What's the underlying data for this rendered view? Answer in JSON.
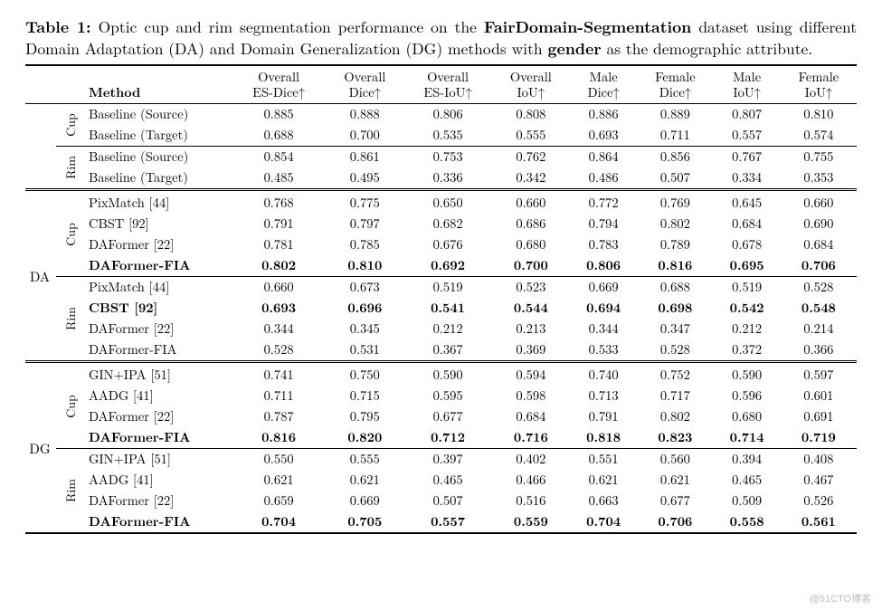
{
  "caption": {
    "label": "Table 1:",
    "before_ds": " Optic cup and rim segmentation performance on the ",
    "dataset": "FairDomain-Segmentation",
    "mid": " dataset using different Domain Adaptation (DA) and Domain Generalization (DG) methods with ",
    "attr": "gender",
    "after_attr": " as the demographic attribute."
  },
  "columns": [
    {
      "l1": "",
      "l2": "Method"
    },
    {
      "l1": "Overall",
      "l2": "ES-Dice↑"
    },
    {
      "l1": "Overall",
      "l2": "Dice↑"
    },
    {
      "l1": "Overall",
      "l2": "ES-IoU↑"
    },
    {
      "l1": "Overall",
      "l2": "IoU↑"
    },
    {
      "l1": "Male",
      "l2": "Dice↑"
    },
    {
      "l1": "Female",
      "l2": "Dice↑"
    },
    {
      "l1": "Male",
      "l2": "IoU↑"
    },
    {
      "l1": "Female",
      "l2": "IoU↑"
    }
  ],
  "section1": {
    "cup_label": "Cup",
    "rim_label": "Rim",
    "cup": [
      {
        "method": "Baseline (Source)",
        "v": [
          "0.885",
          "0.888",
          "0.806",
          "0.808",
          "0.886",
          "0.889",
          "0.807",
          "0.810"
        ]
      },
      {
        "method": "Baseline (Target)",
        "v": [
          "0.688",
          "0.700",
          "0.535",
          "0.555",
          "0.693",
          "0.711",
          "0.557",
          "0.574"
        ]
      }
    ],
    "rim": [
      {
        "method": "Baseline (Source)",
        "v": [
          "0.854",
          "0.861",
          "0.753",
          "0.762",
          "0.864",
          "0.856",
          "0.767",
          "0.755"
        ]
      },
      {
        "method": "Baseline (Target)",
        "v": [
          "0.485",
          "0.495",
          "0.336",
          "0.342",
          "0.486",
          "0.507",
          "0.334",
          "0.353"
        ]
      }
    ]
  },
  "da": {
    "group_label": "DA",
    "cup_label": "Cup",
    "rim_label": "Rim",
    "cup": [
      {
        "method": "PixMatch [44]",
        "v": [
          "0.768",
          "0.775",
          "0.650",
          "0.660",
          "0.772",
          "0.769",
          "0.645",
          "0.660"
        ]
      },
      {
        "method": "CBST [92]",
        "v": [
          "0.791",
          "0.797",
          "0.682",
          "0.686",
          "0.794",
          "0.802",
          "0.684",
          "0.690"
        ]
      },
      {
        "method": "DAFormer [22]",
        "v": [
          "0.781",
          "0.785",
          "0.676",
          "0.680",
          "0.783",
          "0.789",
          "0.678",
          "0.684"
        ]
      },
      {
        "method": "DAFormer-FIA",
        "v": [
          "0.802",
          "0.810",
          "0.692",
          "0.700",
          "0.806",
          "0.816",
          "0.695",
          "0.706"
        ],
        "bold": true
      }
    ],
    "rim": [
      {
        "method": "PixMatch [44]",
        "v": [
          "0.660",
          "0.673",
          "0.519",
          "0.523",
          "0.669",
          "0.688",
          "0.519",
          "0.528"
        ]
      },
      {
        "method": "CBST [92]",
        "v": [
          "0.693",
          "0.696",
          "0.541",
          "0.544",
          "0.694",
          "0.698",
          "0.542",
          "0.548"
        ],
        "bold": true
      },
      {
        "method": "DAFormer [22]",
        "v": [
          "0.344",
          "0.345",
          "0.212",
          "0.213",
          "0.344",
          "0.347",
          "0.212",
          "0.214"
        ]
      },
      {
        "method": "DAFormer-FIA",
        "v": [
          "0.528",
          "0.531",
          "0.367",
          "0.369",
          "0.533",
          "0.528",
          "0.372",
          "0.366"
        ]
      }
    ]
  },
  "dg": {
    "group_label": "DG",
    "cup_label": "Cup",
    "rim_label": "Rim",
    "cup": [
      {
        "method": "GIN+IPA [51]",
        "v": [
          "0.741",
          "0.750",
          "0.590",
          "0.594",
          "0.740",
          "0.752",
          "0.590",
          "0.597"
        ]
      },
      {
        "method": "AADG [41]",
        "v": [
          "0.711",
          "0.715",
          "0.595",
          "0.598",
          "0.713",
          "0.717",
          "0.596",
          "0.601"
        ]
      },
      {
        "method": "DAFormer [22]",
        "v": [
          "0.787",
          "0.795",
          "0.677",
          "0.684",
          "0.791",
          "0.802",
          "0.680",
          "0.691"
        ]
      },
      {
        "method": "DAFormer-FIA",
        "v": [
          "0.816",
          "0.820",
          "0.712",
          "0.716",
          "0.818",
          "0.823",
          "0.714",
          "0.719"
        ],
        "bold": true
      }
    ],
    "rim": [
      {
        "method": "GIN+IPA [51]",
        "v": [
          "0.550",
          "0.555",
          "0.397",
          "0.402",
          "0.551",
          "0.560",
          "0.394",
          "0.408"
        ]
      },
      {
        "method": "AADG [41]",
        "v": [
          "0.621",
          "0.621",
          "0.465",
          "0.466",
          "0.621",
          "0.621",
          "0.465",
          "0.467"
        ]
      },
      {
        "method": "DAFormer [22]",
        "v": [
          "0.659",
          "0.669",
          "0.507",
          "0.516",
          "0.663",
          "0.677",
          "0.509",
          "0.526"
        ]
      },
      {
        "method": "DAFormer-FIA",
        "v": [
          "0.704",
          "0.705",
          "0.557",
          "0.559",
          "0.704",
          "0.706",
          "0.558",
          "0.561"
        ],
        "bold": true
      }
    ]
  },
  "watermark": "@51CTO博客"
}
